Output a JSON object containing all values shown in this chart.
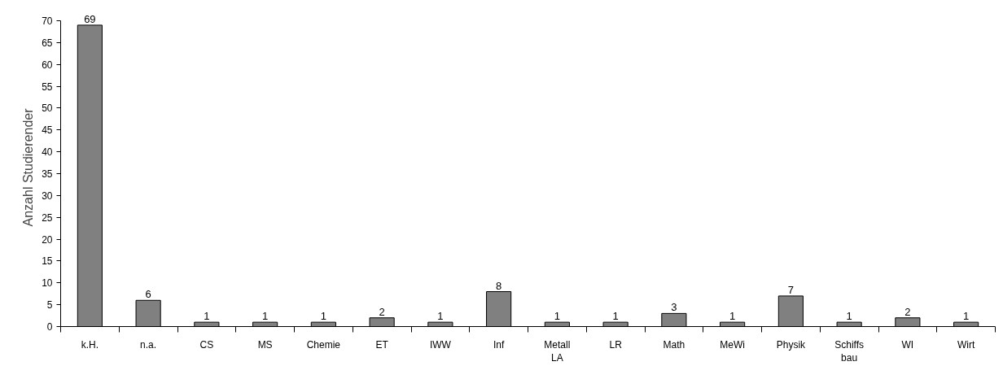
{
  "chart_data": {
    "type": "bar",
    "ylabel": "Anzahl Studierender",
    "categories": [
      "k.H.",
      "n.a.",
      "CS",
      "MS",
      "Chemie",
      "ET",
      "IWW",
      "Inf",
      "Metall\nLA",
      "LR",
      "Math",
      "MeWi",
      "Physik",
      "Schiffs\nbau",
      "WI",
      "Wirt"
    ],
    "values": [
      69,
      6,
      1,
      1,
      1,
      2,
      1,
      8,
      1,
      1,
      3,
      1,
      7,
      1,
      2,
      1
    ],
    "color": "#808080",
    "ylim": [
      0,
      70
    ],
    "yticks": [
      0,
      5,
      10,
      15,
      20,
      25,
      30,
      35,
      40,
      45,
      50,
      55,
      60,
      65,
      70
    ],
    "grid": false,
    "data_labels": true
  }
}
